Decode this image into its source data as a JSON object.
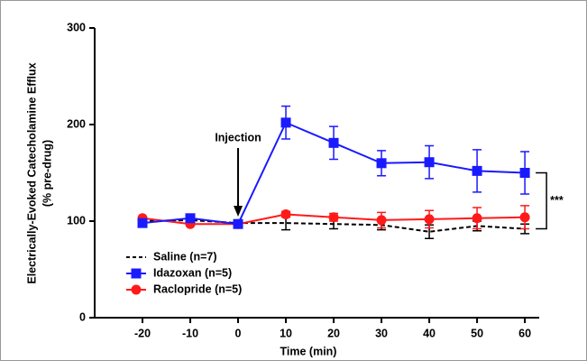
{
  "chart_data": {
    "type": "line",
    "ylabel": [
      "Electrically-Evoked Catecholamine Efflux",
      "(% pre-drug)"
    ],
    "xlabel": "Time (min)",
    "x": [
      -20,
      -10,
      0,
      10,
      20,
      30,
      40,
      50,
      60
    ],
    "xlim": [
      -30,
      63
    ],
    "xticks": [
      -20,
      -10,
      0,
      10,
      20,
      30,
      40,
      50,
      60
    ],
    "ylim": [
      0,
      300
    ],
    "yticks": [
      0,
      100,
      200,
      300
    ],
    "legend": "lower left",
    "series": [
      {
        "name": "Saline (n=7)",
        "color": "#000000",
        "linestyle": "dashed",
        "marker": "none",
        "values": [
          100,
          101,
          98,
          98,
          97,
          96,
          89,
          95,
          92
        ],
        "errors": [
          2,
          2,
          2,
          7,
          5,
          5,
          7,
          5,
          5
        ]
      },
      {
        "name": "Idazoxan (n=5)",
        "color": "#1a1aff",
        "linestyle": "solid",
        "marker": "square",
        "values": [
          98,
          103,
          97,
          202,
          181,
          160,
          161,
          152,
          150
        ],
        "errors": [
          2,
          2,
          1,
          17,
          17,
          13,
          17,
          22,
          22
        ]
      },
      {
        "name": "Raclopride (n=5)",
        "color": "#ff1a1a",
        "linestyle": "solid",
        "marker": "circle",
        "values": [
          103,
          97,
          97,
          107,
          104,
          101,
          102,
          103,
          104
        ],
        "errors": [
          2,
          2,
          1,
          3,
          4,
          8,
          9,
          11,
          12
        ]
      }
    ],
    "annotations": [
      {
        "text": "Injection",
        "x": 0
      },
      {
        "text": "***"
      }
    ]
  }
}
